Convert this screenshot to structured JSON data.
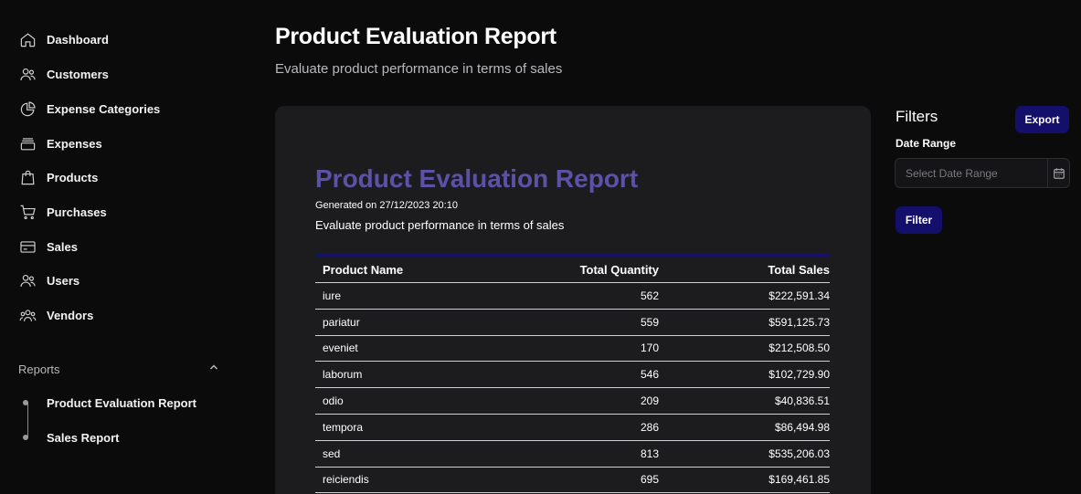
{
  "sidebar": {
    "items": [
      {
        "label": "Dashboard",
        "icon": "home-icon"
      },
      {
        "label": "Customers",
        "icon": "users-icon"
      },
      {
        "label": "Expense Categories",
        "icon": "pie-chart-icon"
      },
      {
        "label": "Expenses",
        "icon": "archive-icon"
      },
      {
        "label": "Products",
        "icon": "shopping-bag-icon"
      },
      {
        "label": "Purchases",
        "icon": "cart-icon"
      },
      {
        "label": "Sales",
        "icon": "credit-card-icon"
      },
      {
        "label": "Users",
        "icon": "users-icon"
      },
      {
        "label": "Vendors",
        "icon": "user-group-icon"
      }
    ],
    "reports": {
      "label": "Reports",
      "expanded": true,
      "items": [
        {
          "label": "Product Evaluation Report"
        },
        {
          "label": "Sales Report"
        }
      ]
    }
  },
  "header": {
    "title": "Product Evaluation Report",
    "subtitle": "Evaluate product performance in terms of sales"
  },
  "report": {
    "title": "Product Evaluation Report",
    "generated": "Generated on 27/12/2023 20:10",
    "description": "Evaluate product performance in terms of sales",
    "columns": [
      "Product Name",
      "Total Quantity",
      "Total Sales"
    ],
    "rows": [
      [
        "iure",
        "562",
        "$222,591.34"
      ],
      [
        "pariatur",
        "559",
        "$591,125.73"
      ],
      [
        "eveniet",
        "170",
        "$212,508.50"
      ],
      [
        "laborum",
        "546",
        "$102,729.90"
      ],
      [
        "odio",
        "209",
        "$40,836.51"
      ],
      [
        "tempora",
        "286",
        "$86,494.98"
      ],
      [
        "sed",
        "813",
        "$535,206.03"
      ],
      [
        "reiciendis",
        "695",
        "$169,461.85"
      ]
    ]
  },
  "filters": {
    "title": "Filters",
    "export_label": "Export",
    "date_range_label": "Date Range",
    "date_range_placeholder": "Select Date Range",
    "date_range_value": "",
    "filter_label": "Filter"
  },
  "colors": {
    "background": "#0b0b0c",
    "card": "#1c1c1f",
    "accent_button": "#140f6a",
    "report_title": "#5b52a8"
  }
}
